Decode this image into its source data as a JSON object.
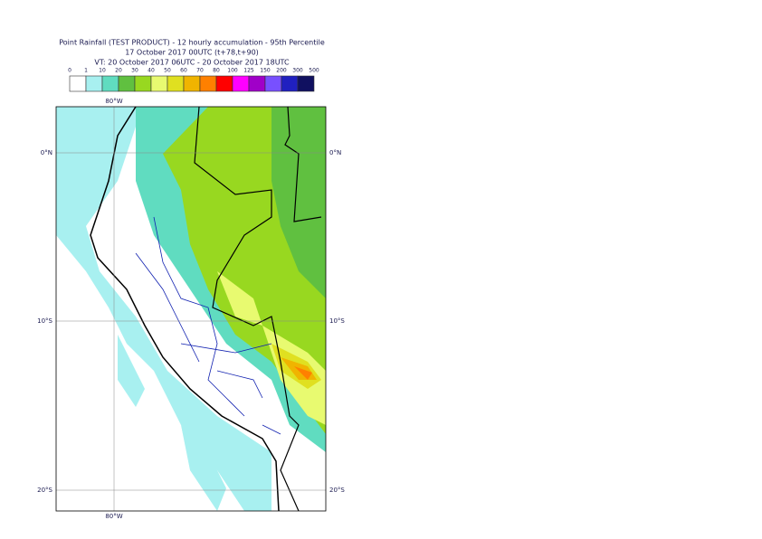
{
  "header": {
    "lines": [
      "Point Rainfall (TEST PRODUCT) - 12 hourly accumulation - 95th Percentile",
      "17 October 2017 00UTC (t+78,t+90)",
      "VT: 20 October 2017 06UTC - 20 October 2017 18UTC"
    ]
  },
  "legend": {
    "labels": [
      "0",
      "1",
      "10",
      "20",
      "30",
      "40",
      "50",
      "60",
      "70",
      "80",
      "100",
      "125",
      "150",
      "200",
      "300",
      "500"
    ],
    "colors": [
      "#ffffff",
      "#a8f0f0",
      "#60dcc0",
      "#60c040",
      "#98d820",
      "#e8fa70",
      "#e0e020",
      "#f0b400",
      "#ff8000",
      "#ff0000",
      "#ff00ff",
      "#a000c8",
      "#7850ff",
      "#2020c0",
      "#101060"
    ]
  },
  "map": {
    "lat_labels": [
      "0°N",
      "10°S",
      "20°S"
    ],
    "lon_label": "80°W"
  }
}
